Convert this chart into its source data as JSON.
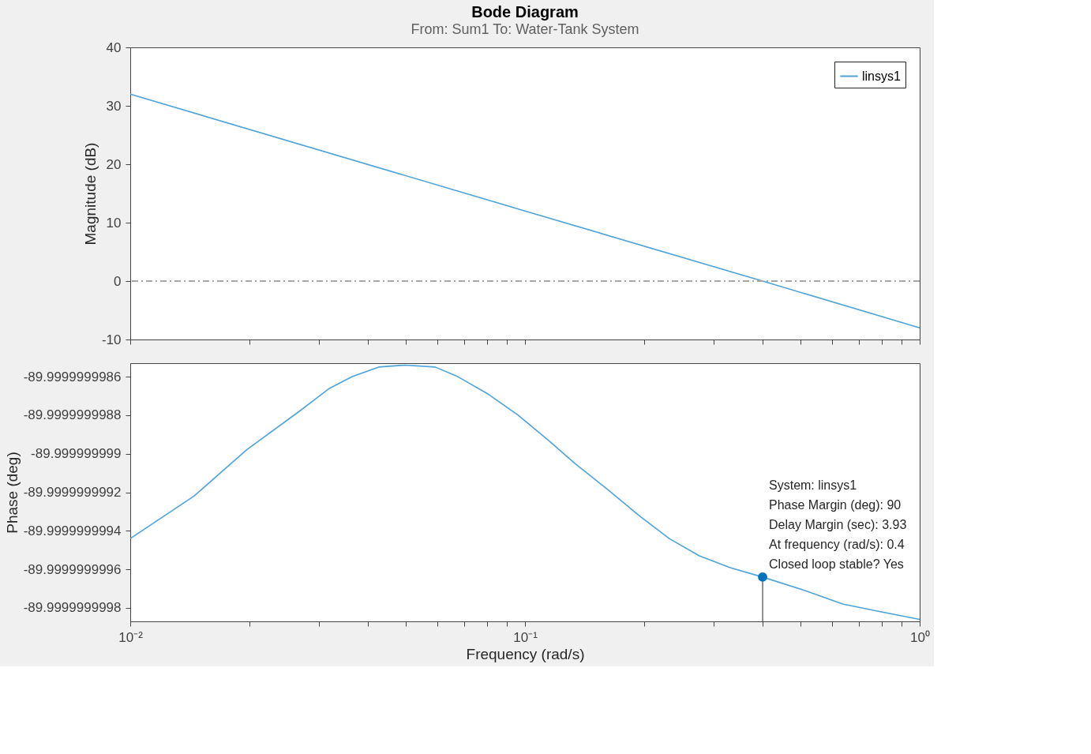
{
  "chart_data": [
    {
      "type": "line",
      "title": "Bode Diagram",
      "subtitle": "From: Sum1  To: Water-Tank System",
      "ylabel": "Magnitude (dB)",
      "log": "x",
      "xlim": [
        0.01,
        1
      ],
      "ylim": [
        -10,
        40
      ],
      "yticks": [
        -10,
        0,
        10,
        20,
        30,
        40
      ],
      "xticks": [
        {
          "value": 0.01,
          "label": null
        },
        {
          "value": 0.02,
          "label": null
        },
        {
          "value": 0.03,
          "label": null
        },
        {
          "value": 0.04,
          "label": null
        },
        {
          "value": 0.05,
          "label": null
        },
        {
          "value": 0.06,
          "label": null
        },
        {
          "value": 0.07,
          "label": null
        },
        {
          "value": 0.08,
          "label": null
        },
        {
          "value": 0.09,
          "label": null
        },
        {
          "value": 0.1,
          "label": null
        },
        {
          "value": 0.2,
          "label": null
        },
        {
          "value": 0.3,
          "label": null
        },
        {
          "value": 0.4,
          "label": null
        },
        {
          "value": 0.5,
          "label": null
        },
        {
          "value": 0.6,
          "label": null
        },
        {
          "value": 0.7,
          "label": null
        },
        {
          "value": 0.8,
          "label": null
        },
        {
          "value": 0.9,
          "label": null
        },
        {
          "value": 1,
          "label": null
        }
      ],
      "tick_labels": "y",
      "grid": false,
      "legend": "top right",
      "ref_lines": [
        {
          "axis": "y",
          "value": 0,
          "color": "#a6a6a6",
          "line_style": "dashdot"
        }
      ],
      "series": [
        {
          "name": "linsys1",
          "color": "#4fa3db",
          "x": [
            0.01,
            0.1,
            0.4,
            1
          ],
          "values": [
            32.0,
            12.0,
            0.0,
            -8.0
          ]
        }
      ]
    },
    {
      "type": "line",
      "xlabel": "Frequency  (rad/s)",
      "ylabel": "Phase (deg)",
      "log": "x",
      "xlim": [
        0.01,
        1
      ],
      "ylim": [
        -89.99999999987,
        -89.99999999853
      ],
      "yticks": [
        -89.9999999998,
        -89.9999999996,
        -89.9999999994,
        -89.9999999992,
        -89.999999999,
        -89.9999999988,
        -89.9999999986
      ],
      "xticks": [
        {
          "value": 0.01,
          "label": "10⁻²"
        },
        {
          "value": 0.02,
          "label": null
        },
        {
          "value": 0.03,
          "label": null
        },
        {
          "value": 0.04,
          "label": null
        },
        {
          "value": 0.05,
          "label": null
        },
        {
          "value": 0.06,
          "label": null
        },
        {
          "value": 0.07,
          "label": null
        },
        {
          "value": 0.08,
          "label": null
        },
        {
          "value": 0.09,
          "label": null
        },
        {
          "value": 0.1,
          "label": "10⁻¹"
        },
        {
          "value": 0.2,
          "label": null
        },
        {
          "value": 0.3,
          "label": null
        },
        {
          "value": 0.4,
          "label": null
        },
        {
          "value": 0.5,
          "label": null
        },
        {
          "value": 0.6,
          "label": null
        },
        {
          "value": 0.7,
          "label": null
        },
        {
          "value": 0.8,
          "label": null
        },
        {
          "value": 0.9,
          "label": null
        },
        {
          "value": 1,
          "label": "10⁰"
        }
      ],
      "grid": false,
      "ref_lines": [
        {
          "axis": "x",
          "value": 0.4,
          "color": "#262626"
        }
      ],
      "annotations": [
        {
          "text": "System: linsys1\nPhase Margin (deg): 90\nDelay Margin (sec): 3.93\nAt frequency (rad/s): 0.4\nClosed loop stable? Yes",
          "x": 0.4,
          "y": -89.99999999964
        }
      ],
      "series": [
        {
          "name": "linsys1",
          "color": "#4fa3db",
          "x": [
            0.01,
            0.0145,
            0.0197,
            0.0268,
            0.032,
            0.0365,
            0.0426,
            0.0497,
            0.0592,
            0.0676,
            0.0806,
            0.0961,
            0.1146,
            0.1337,
            0.163,
            0.1944,
            0.232,
            0.2765,
            0.33,
            0.4,
            0.512,
            0.638,
            0.795,
            1.0
          ],
          "values": [
            -89.99999999944,
            -89.99999999922,
            -89.99999999898,
            -89.99999999878,
            -89.99999999866,
            -89.9999999986,
            -89.99999999855,
            -89.99999999854,
            -89.99999999855,
            -89.9999999986,
            -89.99999999869,
            -89.9999999988,
            -89.99999999893,
            -89.99999999905,
            -89.99999999919,
            -89.99999999932,
            -89.99999999944,
            -89.99999999953,
            -89.99999999959,
            -89.99999999964,
            -89.99999999971,
            -89.99999999978,
            -89.99999999982,
            -89.99999999986
          ]
        }
      ]
    }
  ]
}
